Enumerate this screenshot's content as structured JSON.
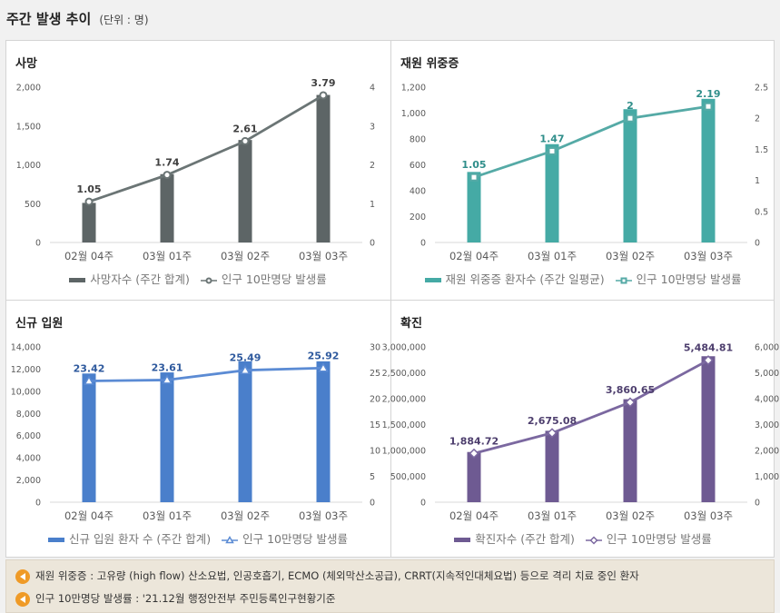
{
  "page": {
    "title": "주간 발생 추이",
    "unit": "(단위 : 명)"
  },
  "chart_data": [
    {
      "id": "deaths",
      "type": "bar",
      "title": "사망",
      "categories": [
        "02월 04주",
        "03월 01주",
        "03월 02주",
        "03월 03주"
      ],
      "series": [
        {
          "name": "사망자수 (주간 합계)",
          "axis": "left",
          "values": [
            510,
            880,
            1320,
            1900
          ]
        },
        {
          "name": "인구 10만명당 발생률",
          "axis": "right",
          "type": "line",
          "values": [
            1.05,
            1.74,
            2.61,
            3.79
          ]
        }
      ],
      "data_labels": [
        "1.05",
        "1.74",
        "2.61",
        "3.79"
      ],
      "left_ticks": [
        "0",
        "500",
        "1,000",
        "1,500",
        "2,000"
      ],
      "left_range": [
        0,
        2000
      ],
      "right_ticks": [
        "0",
        "1",
        "2",
        "3",
        "4"
      ],
      "right_range": [
        0,
        4
      ],
      "bar_color": "#5d6566",
      "line_color": "#6b7575",
      "label_color": "#404040",
      "marker": "circle"
    },
    {
      "id": "severe",
      "type": "bar",
      "title": "재원 위중증",
      "categories": [
        "02월 04주",
        "03월 01주",
        "03월 02주",
        "03월 03주"
      ],
      "series": [
        {
          "name": "재원 위중증 환자수 (주간 일평균)",
          "axis": "left",
          "values": [
            545,
            760,
            1030,
            1110
          ]
        },
        {
          "name": "인구 10만명당 발생률",
          "axis": "right",
          "type": "line",
          "values": [
            1.05,
            1.47,
            2,
            2.19
          ]
        }
      ],
      "data_labels": [
        "1.05",
        "1.47",
        "2",
        "2.19"
      ],
      "left_ticks": [
        "0",
        "200",
        "400",
        "600",
        "800",
        "1,000",
        "1,200"
      ],
      "left_range": [
        0,
        1200
      ],
      "right_ticks": [
        "0",
        "0.5",
        "1",
        "1.5",
        "2",
        "2.5"
      ],
      "right_range": [
        0,
        2.5
      ],
      "bar_color": "#45aaa5",
      "line_color": "#55aaa6",
      "label_color": "#2f8e8a",
      "marker": "square"
    },
    {
      "id": "admission",
      "type": "bar",
      "title": "신규 입원",
      "categories": [
        "02월 04주",
        "03월 01주",
        "03월 02주",
        "03월 03주"
      ],
      "series": [
        {
          "name": "신규 입원 환자 수 (주간 합계)",
          "axis": "left",
          "values": [
            11600,
            11700,
            12700,
            12700
          ]
        },
        {
          "name": "인구 10만명당 발생률",
          "axis": "right",
          "type": "line",
          "values": [
            23.42,
            23.61,
            25.49,
            25.92
          ]
        }
      ],
      "data_labels": [
        "23.42",
        "23.61",
        "25.49",
        "25.92"
      ],
      "left_ticks": [
        "0",
        "2,000",
        "4,000",
        "6,000",
        "8,000",
        "10,000",
        "12,000",
        "14,000"
      ],
      "left_range": [
        0,
        14000
      ],
      "right_ticks": [
        "0",
        "5",
        "10",
        "15",
        "20",
        "25",
        "30"
      ],
      "right_range": [
        0,
        30
      ],
      "bar_color": "#4a7fcb",
      "line_color": "#5b8bd4",
      "label_color": "#2f5a9e",
      "marker": "triangle"
    },
    {
      "id": "confirmed",
      "type": "bar",
      "title": "확진",
      "categories": [
        "02월 04주",
        "03월 01주",
        "03월 02주",
        "03월 03주"
      ],
      "series": [
        {
          "name": "확진자수 (주간 합계)",
          "axis": "left",
          "values": [
            970000,
            1380000,
            1990000,
            2820000
          ]
        },
        {
          "name": "인구 10만명당 발생률",
          "axis": "right",
          "type": "line",
          "values": [
            1884.72,
            2675.08,
            3860.65,
            5484.81
          ]
        }
      ],
      "data_labels": [
        "1,884.72",
        "2,675.08",
        "3,860.65",
        "5,484.81"
      ],
      "left_ticks": [
        "0",
        "500,000",
        "1,000,000",
        "1,500,000",
        "2,000,000",
        "2,500,000",
        "3,000,000"
      ],
      "left_range": [
        0,
        3000000
      ],
      "right_ticks": [
        "0",
        "1,000",
        "2,000",
        "3,000",
        "4,000",
        "5,000",
        "6,000"
      ],
      "right_range": [
        0,
        6000
      ],
      "bar_color": "#6e5a92",
      "line_color": "#7b68a0",
      "label_color": "#4e3f6e",
      "marker": "diamond"
    }
  ],
  "notes": [
    "재원 위중증 : 고유량 (high flow) 산소요법, 인공호흡기, ECMO (체외막산소공급), CRRT(지속적인대체요법) 등으로 격리 치료 중인 환자",
    "인구 10만명당 발생률 : '21.12월 행정안전부 주민등록인구현황기준"
  ]
}
